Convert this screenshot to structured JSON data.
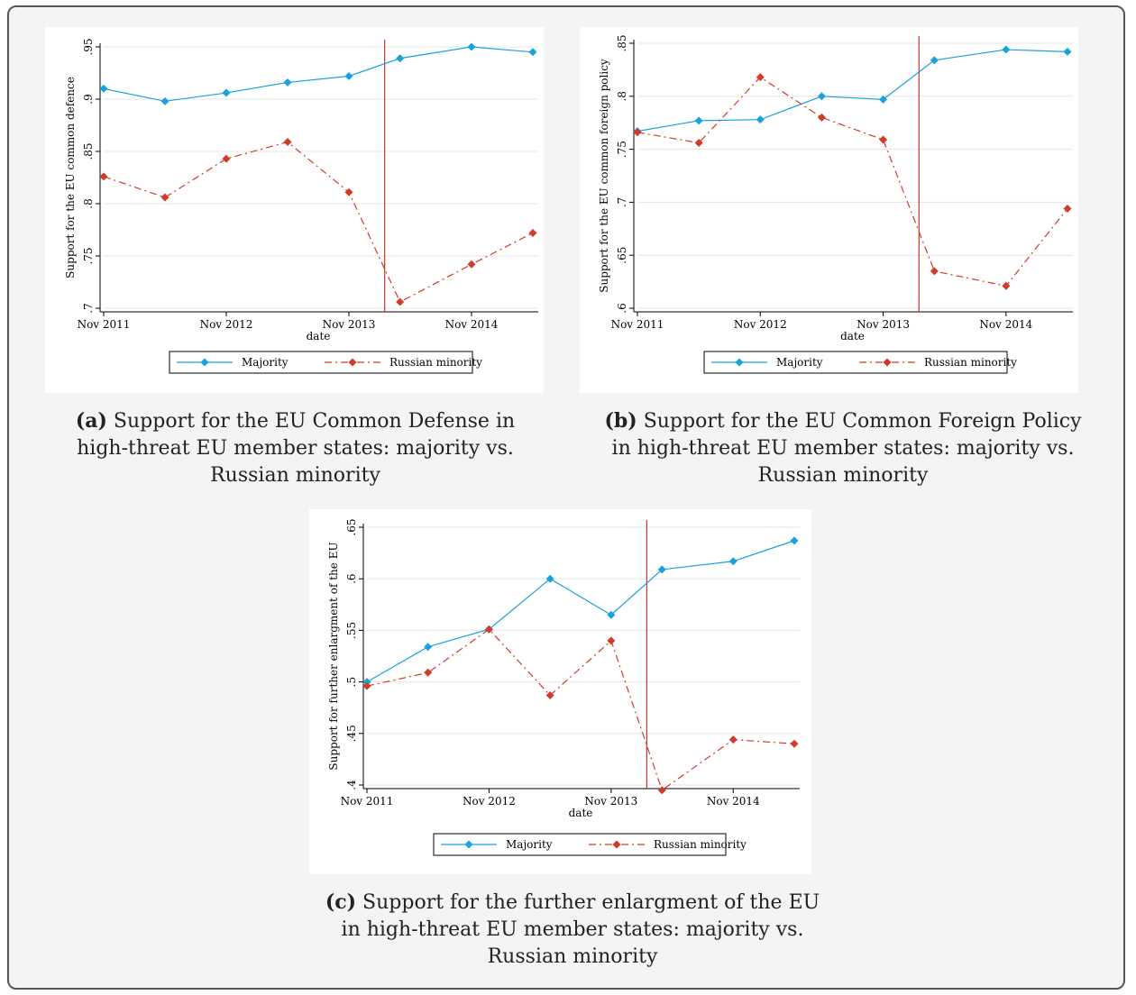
{
  "colors": {
    "majority": "#1ba1dc",
    "minority": "#d03b2a",
    "event_line": "#c0392b",
    "grid": "#e6e6e6",
    "axis": "#000000"
  },
  "chart_data": [
    {
      "type": "line",
      "panel_id": "a",
      "xlabel": "date",
      "ylabel": "Support for the EU common defence",
      "x_ticks": [
        "Nov 2011",
        "Nov 2012",
        "Nov 2013",
        "Nov 2014"
      ],
      "y_ticks": [
        ".7",
        ".75",
        ".8",
        ".85",
        ".9",
        ".95"
      ],
      "y_tick_values": [
        0.7,
        0.75,
        0.8,
        0.85,
        0.9,
        0.95
      ],
      "ylim": [
        0.7,
        0.95
      ],
      "xlim": [
        0,
        42
      ],
      "x_tick_positions": [
        0,
        12,
        24,
        36
      ],
      "event_line_x": 27.5,
      "x": [
        0,
        6,
        12,
        18,
        24,
        29,
        36,
        42
      ],
      "series": [
        {
          "name": "Majority",
          "values": [
            0.91,
            0.898,
            0.906,
            0.916,
            0.922,
            0.939,
            0.95,
            0.945
          ]
        },
        {
          "name": "Russian minority",
          "values": [
            0.826,
            0.806,
            0.843,
            0.859,
            0.811,
            0.706,
            0.742,
            0.772
          ]
        }
      ],
      "legend": "bottom",
      "grid": true
    },
    {
      "type": "line",
      "panel_id": "b",
      "xlabel": "date",
      "ylabel": "Support for the EU common foreign policy",
      "x_ticks": [
        "Nov 2011",
        "Nov 2012",
        "Nov 2013",
        "Nov 2014"
      ],
      "y_ticks": [
        ".6",
        ".65",
        ".7",
        ".75",
        ".8",
        ".85"
      ],
      "y_tick_values": [
        0.6,
        0.65,
        0.7,
        0.75,
        0.8,
        0.85
      ],
      "ylim": [
        0.6,
        0.85
      ],
      "xlim": [
        0,
        42
      ],
      "x_tick_positions": [
        0,
        12,
        24,
        36
      ],
      "event_line_x": 27.5,
      "x": [
        0,
        6,
        12,
        18,
        24,
        29,
        36,
        42
      ],
      "series": [
        {
          "name": "Majority",
          "values": [
            0.767,
            0.777,
            0.778,
            0.8,
            0.797,
            0.834,
            0.844,
            0.842
          ]
        },
        {
          "name": "Russian minority",
          "values": [
            0.766,
            0.756,
            0.818,
            0.78,
            0.759,
            0.635,
            0.621,
            0.694
          ]
        }
      ],
      "legend": "bottom",
      "grid": true
    },
    {
      "type": "line",
      "panel_id": "c",
      "xlabel": "date",
      "ylabel": "Support for further enlargment of the EU",
      "x_ticks": [
        "Nov 2011",
        "Nov 2012",
        "Nov 2013",
        "Nov 2014"
      ],
      "y_ticks": [
        ".4",
        ".45",
        ".5",
        ".55",
        ".6",
        ".65"
      ],
      "y_tick_values": [
        0.4,
        0.45,
        0.5,
        0.55,
        0.6,
        0.65
      ],
      "ylim": [
        0.4,
        0.65
      ],
      "xlim": [
        0,
        42
      ],
      "x_tick_positions": [
        0,
        12,
        24,
        36
      ],
      "event_line_x": 27.5,
      "x": [
        0,
        6,
        12,
        18,
        24,
        29,
        36,
        42
      ],
      "series": [
        {
          "name": "Majority",
          "values": [
            0.5,
            0.534,
            0.551,
            0.6,
            0.565,
            0.609,
            0.617,
            0.637
          ]
        },
        {
          "name": "Russian minority",
          "values": [
            0.496,
            0.509,
            0.551,
            0.487,
            0.54,
            0.395,
            0.444,
            0.44
          ]
        }
      ],
      "legend": "bottom",
      "grid": true
    }
  ],
  "captions": {
    "a": {
      "label": "(a)",
      "lines": [
        "Support for the EU Common Defense in",
        "high-threat EU member states: majority vs.",
        "Russian minority"
      ]
    },
    "b": {
      "label": "(b)",
      "lines": [
        "Support for the EU Common Foreign Policy",
        "in high-threat EU member states: majority vs.",
        "Russian minority"
      ]
    },
    "c": {
      "label": "(c)",
      "lines": [
        "Support for the further enlargment of the EU",
        "in high-threat EU member states: majority vs.",
        "Russian minority"
      ]
    }
  }
}
